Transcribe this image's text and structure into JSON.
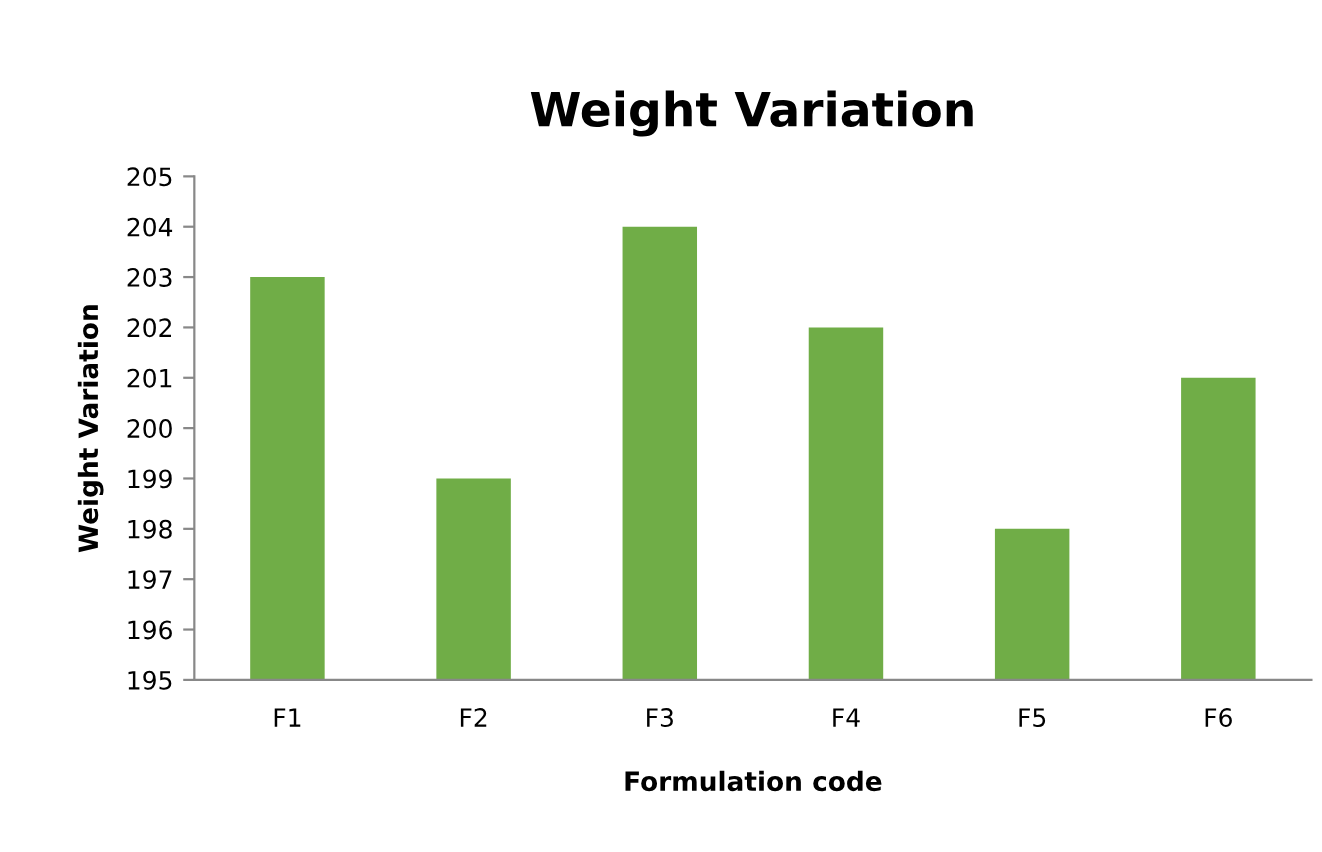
{
  "chart_data": {
    "type": "bar",
    "title": "Weight Variation",
    "xlabel": "Formulation code",
    "ylabel": "Weight Variation",
    "categories": [
      "F1",
      "F2",
      "F3",
      "F4",
      "F5",
      "F6"
    ],
    "values": [
      203,
      199,
      204,
      202,
      198,
      201
    ],
    "color": "#70ad47",
    "ylim": [
      195,
      205
    ],
    "yticks": [
      195,
      196,
      197,
      198,
      199,
      200,
      201,
      202,
      203,
      204,
      205
    ],
    "grid": false,
    "legend": false
  }
}
